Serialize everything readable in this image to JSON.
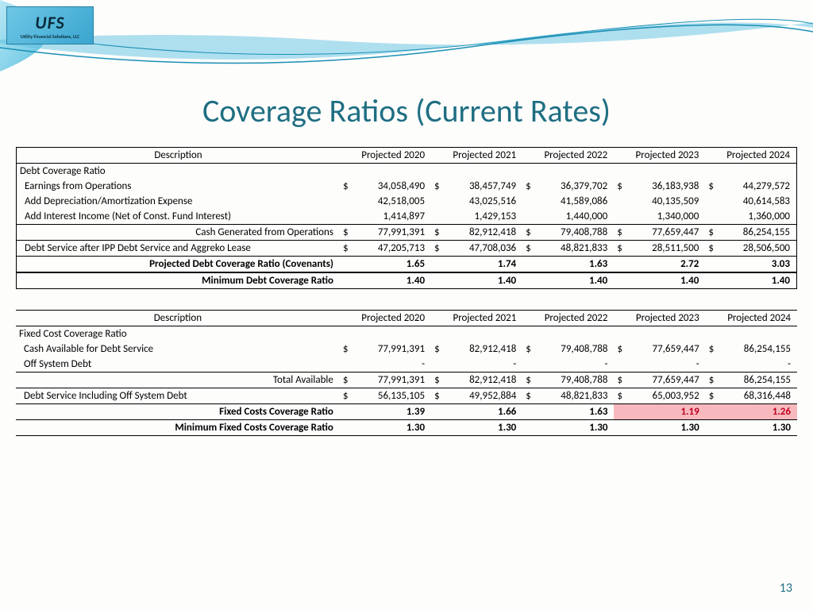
{
  "logo": {
    "text": "UFS",
    "sub": "Utility Financial Solutions, LLC"
  },
  "title": "Coverage Ratios (Current Rates)",
  "page_number": "13",
  "colors": {
    "title": "#1f6e82",
    "highlight_bg": "#f7b9bd",
    "highlight_fg": "#c00020",
    "swoosh_light": "#9edcf0",
    "swoosh_dark": "#1a8fb5"
  },
  "columns": [
    "Description",
    "Projected 2020",
    "Projected 2021",
    "Projected 2022",
    "Projected 2023",
    "Projected 2024"
  ],
  "table1": {
    "section": "Debt Coverage Ratio",
    "rows": [
      {
        "label": "Earnings from Operations",
        "indent": 1,
        "dollar": true,
        "values": [
          "34,058,490",
          "38,457,749",
          "36,379,702",
          "36,183,938",
          "44,279,572"
        ]
      },
      {
        "label": "Add Depreciation/Amortization Expense",
        "indent": 1,
        "dollar": false,
        "values": [
          "42,518,005",
          "43,025,516",
          "41,589,086",
          "40,135,509",
          "40,614,583"
        ]
      },
      {
        "label": "Add Interest Income (Net of Const. Fund Interest)",
        "indent": 1,
        "dollar": false,
        "values": [
          "1,414,897",
          "1,429,153",
          "1,440,000",
          "1,340,000",
          "1,360,000"
        ]
      },
      {
        "label": "Cash Generated from Operations",
        "indent": 0,
        "right": true,
        "dollar": true,
        "border": "topbottom",
        "values": [
          "77,991,391",
          "82,912,418",
          "79,408,788",
          "77,659,447",
          "86,254,155"
        ]
      },
      {
        "label": "Debt Service after IPP Debt Service and Aggreko Lease",
        "indent": 1,
        "dollar": true,
        "border": "bottom",
        "values": [
          "47,205,713",
          "47,708,036",
          "48,821,833",
          "28,511,500",
          "28,506,500"
        ]
      },
      {
        "label": "Projected Debt Coverage Ratio (Covenants)",
        "indent": 0,
        "right": true,
        "bold": true,
        "border": "heavy-bottom",
        "values": [
          "1.65",
          "1.74",
          "1.63",
          "2.72",
          "3.03"
        ]
      },
      {
        "label": "Minimum Debt Coverage Ratio",
        "indent": 0,
        "right": true,
        "bold": true,
        "border": "bottom",
        "values": [
          "1.40",
          "1.40",
          "1.40",
          "1.40",
          "1.40"
        ]
      }
    ]
  },
  "table2": {
    "section": "Fixed Cost Coverage Ratio",
    "rows": [
      {
        "label": "Cash Available for Debt Service",
        "indent": 1,
        "dollar": true,
        "values": [
          "77,991,391",
          "82,912,418",
          "79,408,788",
          "77,659,447",
          "86,254,155"
        ]
      },
      {
        "label": "Off System Debt",
        "indent": 1,
        "dollar": false,
        "values": [
          "-",
          "-",
          "-",
          "-",
          "-"
        ]
      },
      {
        "label": "Total Available",
        "indent": 0,
        "right": true,
        "dollar": true,
        "border": "topbottom",
        "values": [
          "77,991,391",
          "82,912,418",
          "79,408,788",
          "77,659,447",
          "86,254,155"
        ]
      },
      {
        "label": "Debt Service Including Off System Debt",
        "indent": 1,
        "dollar": true,
        "border": "bottom",
        "values": [
          "56,135,105",
          "49,952,884",
          "48,821,833",
          "65,003,952",
          "68,316,448"
        ]
      },
      {
        "label": "Fixed Costs Coverage Ratio",
        "indent": 0,
        "right": true,
        "bold": true,
        "values": [
          "1.39",
          "1.66",
          "1.63",
          "1.19",
          "1.26"
        ],
        "highlight": [
          false,
          false,
          false,
          true,
          true
        ]
      },
      {
        "label": "Minimum Fixed Costs Coverage Ratio",
        "indent": 0,
        "right": true,
        "bold": true,
        "border": "topbottom",
        "values": [
          "1.30",
          "1.30",
          "1.30",
          "1.30",
          "1.30"
        ]
      }
    ]
  }
}
